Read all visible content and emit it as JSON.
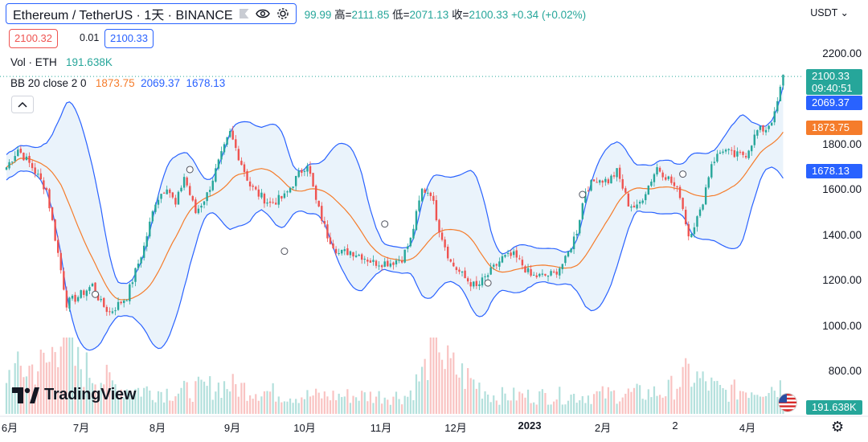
{
  "header": {
    "symbol_title": "Ethereum / TetherUS · 1天 · BINANCE",
    "ohlc_text": "99.99",
    "high_label": "高=",
    "high_value": "2111.85",
    "low_label": "低=",
    "low_value": "2071.13",
    "close_label": "收=",
    "close_value": "2100.33",
    "change_value": "+0.34 (+0.02%)"
  },
  "trade": {
    "bid": "2100.32",
    "spread": "0.01",
    "ask": "2100.33"
  },
  "volume_legend": {
    "label": "Vol · ETH",
    "value": "191.638K"
  },
  "bb_legend": {
    "label": "BB 20 close 2 0",
    "mid": "1873.75",
    "upper": "2069.37",
    "lower": "1678.13"
  },
  "logo_text": "TradingView",
  "unit_selector": "USDT",
  "price_axis": {
    "ticks": [
      "2200.00",
      "1800.00",
      "1600.00",
      "1400.00",
      "1200.00",
      "1000.00",
      "800.00"
    ],
    "tags": {
      "last_price": "2100.33",
      "countdown": "09:40:51",
      "bb_upper": "2069.37",
      "bb_mid": "1873.75",
      "bb_lower": "1678.13",
      "volume": "191.638K"
    }
  },
  "time_axis": [
    "6月",
    "7月",
    "8月",
    "9月",
    "10月",
    "11月",
    "12月",
    "2023",
    "2月",
    "2",
    "4月"
  ],
  "colors": {
    "up": "#26a69a",
    "down": "#ef5350",
    "bb_mid": "#f57c2b",
    "bb_band": "#2962ff",
    "bb_fill": "#eaf3fb"
  },
  "chart_data": {
    "type": "candlestick",
    "y_range": [
      700,
      2280
    ],
    "series_anchors": [
      [
        0,
        1700
      ],
      [
        4,
        1780
      ],
      [
        9,
        1700
      ],
      [
        14,
        1600
      ],
      [
        18,
        1320
      ],
      [
        21,
        1100
      ],
      [
        25,
        1130
      ],
      [
        30,
        1180
      ],
      [
        33,
        1100
      ],
      [
        36,
        1060
      ],
      [
        42,
        1130
      ],
      [
        48,
        1350
      ],
      [
        52,
        1550
      ],
      [
        56,
        1620
      ],
      [
        59,
        1530
      ],
      [
        62,
        1660
      ],
      [
        66,
        1500
      ],
      [
        70,
        1580
      ],
      [
        74,
        1720
      ],
      [
        78,
        1850
      ],
      [
        81,
        1750
      ],
      [
        85,
        1620
      ],
      [
        88,
        1580
      ],
      [
        92,
        1540
      ],
      [
        97,
        1570
      ],
      [
        101,
        1650
      ],
      [
        105,
        1720
      ],
      [
        108,
        1550
      ],
      [
        112,
        1400
      ],
      [
        116,
        1320
      ],
      [
        120,
        1330
      ],
      [
        124,
        1310
      ],
      [
        128,
        1280
      ],
      [
        134,
        1280
      ],
      [
        138,
        1300
      ],
      [
        141,
        1380
      ],
      [
        145,
        1600
      ],
      [
        148,
        1590
      ],
      [
        151,
        1430
      ],
      [
        155,
        1280
      ],
      [
        160,
        1210
      ],
      [
        164,
        1170
      ],
      [
        169,
        1240
      ],
      [
        173,
        1300
      ],
      [
        177,
        1310
      ],
      [
        180,
        1270
      ],
      [
        183,
        1220
      ],
      [
        187,
        1220
      ],
      [
        191,
        1230
      ],
      [
        195,
        1290
      ],
      [
        199,
        1420
      ],
      [
        202,
        1600
      ],
      [
        206,
        1650
      ],
      [
        210,
        1640
      ],
      [
        213,
        1680
      ],
      [
        217,
        1540
      ],
      [
        220,
        1520
      ],
      [
        224,
        1620
      ],
      [
        227,
        1700
      ],
      [
        231,
        1650
      ],
      [
        235,
        1580
      ],
      [
        238,
        1400
      ],
      [
        242,
        1500
      ],
      [
        246,
        1720
      ],
      [
        250,
        1780
      ],
      [
        254,
        1750
      ],
      [
        258,
        1760
      ],
      [
        262,
        1860
      ],
      [
        265,
        1870
      ],
      [
        268,
        1930
      ],
      [
        271,
        2100
      ]
    ],
    "volume_anchors": [
      [
        0,
        55
      ],
      [
        15,
        70
      ],
      [
        18,
        110
      ],
      [
        20,
        180
      ],
      [
        22,
        150
      ],
      [
        24,
        70
      ],
      [
        40,
        35
      ],
      [
        60,
        30
      ],
      [
        76,
        40
      ],
      [
        100,
        25
      ],
      [
        140,
        25
      ],
      [
        146,
        60
      ],
      [
        150,
        140
      ],
      [
        153,
        70
      ],
      [
        170,
        25
      ],
      [
        200,
        25
      ],
      [
        230,
        30
      ],
      [
        238,
        55
      ],
      [
        250,
        30
      ],
      [
        272,
        40
      ]
    ]
  }
}
